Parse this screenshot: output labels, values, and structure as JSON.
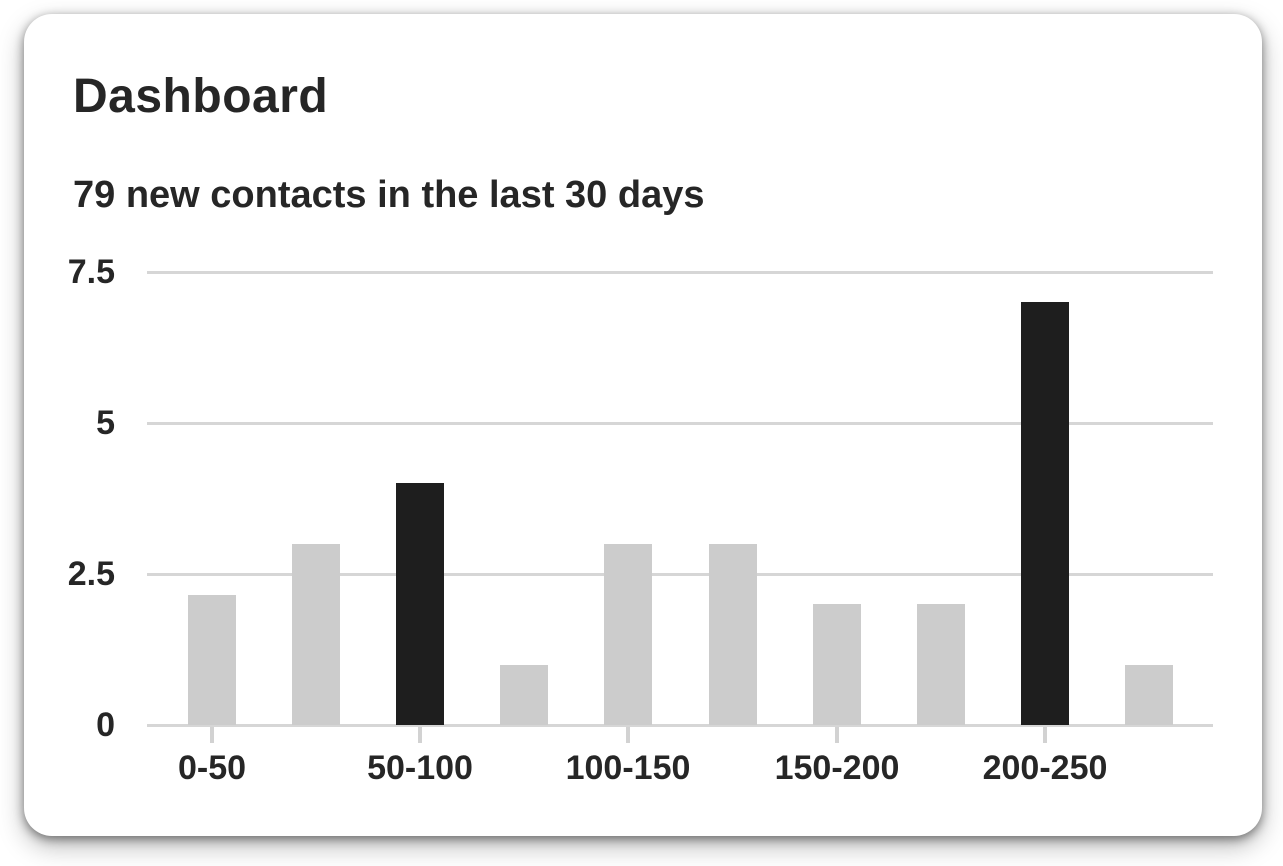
{
  "header": {
    "title": "Dashboard",
    "subtitle": "79 new contacts in the last 30 days"
  },
  "colors": {
    "card_background": "#ffffff",
    "text": "#262626",
    "bar_default": "#cccccc",
    "bar_highlight": "#1e1e1e",
    "gridline": "#d6d6d6",
    "axis_tick": "#d2d2d2"
  },
  "chart_data": {
    "type": "bar",
    "title": "79 new contacts in the last 30 days",
    "values": [
      2.15,
      3,
      4,
      1,
      3,
      3,
      2,
      2,
      7,
      1
    ],
    "bar_count": 10,
    "highlighted_bar_indices": [
      2,
      8
    ],
    "x_tick_labels": [
      "0-50",
      "50-100",
      "100-150",
      "150-200",
      "200-250"
    ],
    "x_tick_bar_indices": [
      0,
      2,
      4,
      6,
      8
    ],
    "y_ticks": [
      0,
      2.5,
      5,
      7.5
    ],
    "y_tick_labels": [
      "0",
      "2.5",
      "5",
      "7.5"
    ],
    "ylim": [
      0,
      7.5
    ],
    "xlabel": "",
    "ylabel": "",
    "grid": "horizontal",
    "legend": "none"
  }
}
